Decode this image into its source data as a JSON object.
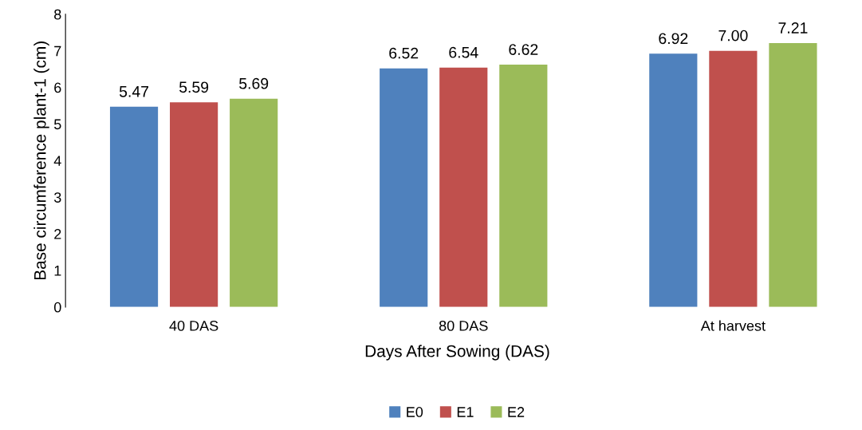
{
  "chart_data": {
    "type": "bar",
    "xlabel": "Days After Sowing (DAS)",
    "ylabel": "Base circumference plant-1 (cm)",
    "categories": [
      "40 DAS",
      "80 DAS",
      "At harvest"
    ],
    "series": [
      {
        "name": "E0",
        "color": "#4f81bd",
        "values": [
          5.47,
          6.52,
          6.92
        ],
        "value_labels": [
          "5.47",
          "6.52",
          "6.92"
        ]
      },
      {
        "name": "E1",
        "color": "#c0504d",
        "values": [
          5.59,
          6.54,
          7.0
        ],
        "value_labels": [
          "5.59",
          "6.54",
          "7.00"
        ]
      },
      {
        "name": "E2",
        "color": "#9bbb59",
        "values": [
          5.69,
          6.62,
          7.21
        ],
        "value_labels": [
          "5.69",
          "6.62",
          "7.21"
        ]
      }
    ],
    "ylim": [
      0,
      8
    ],
    "yticks": [
      0,
      1,
      2,
      3,
      4,
      5,
      6,
      7,
      8
    ],
    "grid": false,
    "legend": "bottom"
  }
}
